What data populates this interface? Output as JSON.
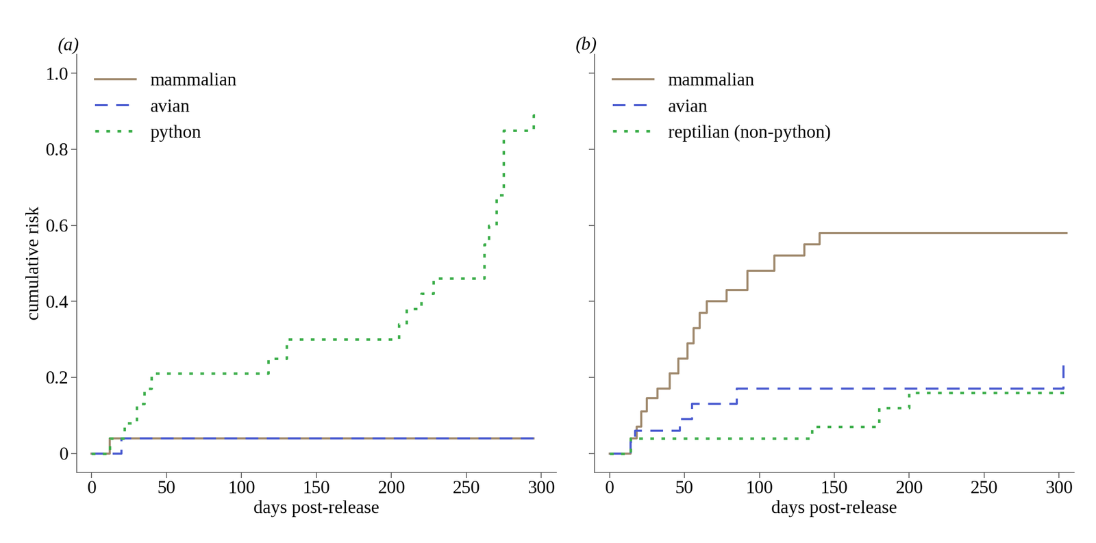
{
  "chart_data": [
    {
      "type": "step",
      "title": "(a)",
      "x_label": "days post-release",
      "y_label": "cumulative risk",
      "xlim": [
        -10,
        310
      ],
      "ylim": [
        -0.05,
        1.05
      ],
      "xticks": [
        0,
        50,
        100,
        150,
        200,
        250,
        300
      ],
      "yticks": [
        0,
        0.2,
        0.4,
        0.6,
        0.8,
        {
          "value": 1,
          "label": "1.0"
        }
      ],
      "legend": "upper left",
      "series": [
        {
          "name": "mammalian",
          "color": "#a08a6e",
          "line_style": "solid",
          "x": [
            0,
            12,
            295
          ],
          "values": [
            0,
            0.04,
            0.04
          ]
        },
        {
          "name": "avian",
          "color": "#4a5bd0",
          "line_style": "dashed",
          "x": [
            0,
            20,
            295
          ],
          "values": [
            0,
            0.04,
            0.04
          ]
        },
        {
          "name": "python",
          "color": "#3cae4a",
          "line_style": "dotted",
          "x": [
            0,
            12,
            22,
            30,
            35,
            40,
            118,
            130,
            205,
            210,
            220,
            228,
            262,
            265,
            270,
            275,
            295,
            296
          ],
          "values": [
            0,
            0.04,
            0.08,
            0.13,
            0.17,
            0.21,
            0.25,
            0.3,
            0.34,
            0.38,
            0.42,
            0.46,
            0.55,
            0.6,
            0.68,
            0.85,
            0.89,
            0.89
          ]
        }
      ]
    },
    {
      "type": "step",
      "title": "(b)",
      "x_label": "days post-release",
      "xlim": [
        -10,
        310
      ],
      "ylim": [
        -0.05,
        1.05
      ],
      "xticks": [
        0,
        50,
        100,
        150,
        200,
        250,
        300
      ],
      "yticks": [
        0,
        0.2,
        0.4,
        0.6,
        0.8,
        {
          "value": 1,
          "label": "1.0"
        }
      ],
      "tick_labels": "x",
      "legend": "upper left",
      "series": [
        {
          "name": "mammalian",
          "color": "#a08a6e",
          "line_style": "solid",
          "x": [
            0,
            14,
            18,
            21,
            25,
            32,
            40,
            46,
            52,
            56,
            60,
            65,
            78,
            92,
            110,
            130,
            140,
            305
          ],
          "values": [
            0,
            0.04,
            0.07,
            0.11,
            0.145,
            0.17,
            0.21,
            0.25,
            0.29,
            0.33,
            0.37,
            0.4,
            0.43,
            0.48,
            0.52,
            0.55,
            0.58,
            0.58
          ]
        },
        {
          "name": "avian",
          "color": "#4a5bd0",
          "line_style": "dashed",
          "x": [
            0,
            14,
            17,
            47,
            55,
            85,
            303,
            304
          ],
          "values": [
            0,
            0.03,
            0.06,
            0.09,
            0.13,
            0.17,
            0.25,
            0.25
          ]
        },
        {
          "name": "reptilian (non-python)",
          "color": "#3cae4a",
          "line_style": "dotted",
          "x": [
            0,
            14,
            135,
            180,
            200,
            304
          ],
          "values": [
            0,
            0.04,
            0.07,
            0.12,
            0.16,
            0.16
          ]
        }
      ]
    }
  ]
}
